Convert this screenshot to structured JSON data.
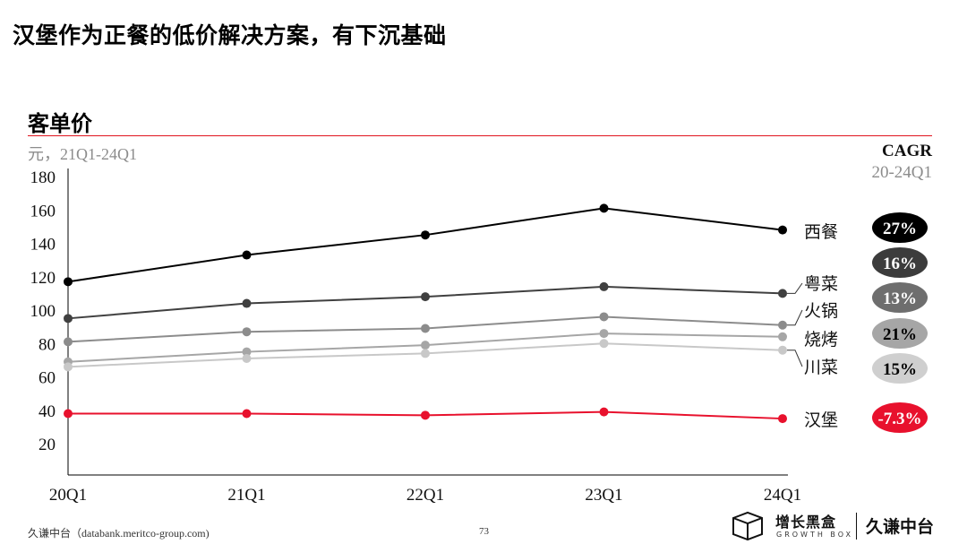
{
  "slide": {
    "title": "汉堡作为正餐的低价解决方案，有下沉基础",
    "section_title": "客单价",
    "unit_label": "元，21Q1-24Q1",
    "cagr_title": "CAGR",
    "cagr_subtitle": "20-24Q1"
  },
  "chart_data": {
    "type": "line",
    "title": "客单价",
    "ylabel": "元，21Q1-24Q1",
    "ylim": [
      0,
      180
    ],
    "yticks": [
      20,
      40,
      60,
      80,
      100,
      120,
      140,
      160,
      180
    ],
    "grid": false,
    "categories": [
      "20Q1",
      "21Q1",
      "22Q1",
      "23Q1",
      "24Q1"
    ],
    "series": [
      {
        "name": "西餐",
        "values": [
          117,
          133,
          145,
          161,
          148
        ],
        "color": "#000000",
        "cagr": "27%",
        "cagr_fill": "#000000",
        "cagr_text_color": "#ffffff"
      },
      {
        "name": "粤菜",
        "values": [
          95,
          104,
          108,
          114,
          110
        ],
        "color": "#404040",
        "cagr": "16%",
        "cagr_fill": "#3c3c3c",
        "cagr_text_color": "#ffffff"
      },
      {
        "name": "火锅",
        "values": [
          81,
          87,
          89,
          96,
          91
        ],
        "color": "#8c8c8c",
        "cagr": "13%",
        "cagr_fill": "#6e6e6e",
        "cagr_text_color": "#ffffff"
      },
      {
        "name": "烧烤",
        "values": [
          69,
          75,
          79,
          86,
          84
        ],
        "color": "#a6a6a6",
        "cagr": "21%",
        "cagr_fill": "#a6a6a6",
        "cagr_text_color": "#000000"
      },
      {
        "name": "川菜",
        "values": [
          66,
          71,
          74,
          80,
          76
        ],
        "color": "#c8c8c8",
        "cagr": "15%",
        "cagr_fill": "#cfcfcf",
        "cagr_text_color": "#000000"
      },
      {
        "name": "汉堡",
        "values": [
          38,
          38,
          37,
          39,
          35
        ],
        "color": "#e8112d",
        "cagr": "-7.3%",
        "cagr_fill": "#e8112d",
        "cagr_text_color": "#ffffff"
      }
    ]
  },
  "footer": {
    "source": "久谦中台（databank.meritco-group.com)",
    "page": "73",
    "logo_cn": "增长黑盒",
    "logo_en": "GROWTH BOX",
    "brand": "久谦中台"
  }
}
